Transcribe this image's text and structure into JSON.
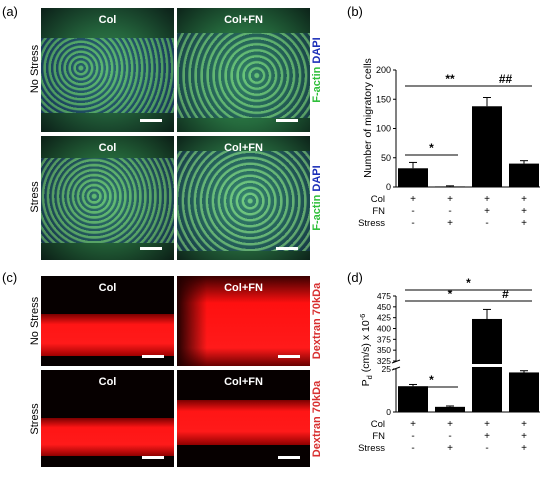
{
  "panels": {
    "a": {
      "label": "(a)",
      "rows": [
        "No Stress",
        "Stress"
      ],
      "cols": [
        "Col",
        "Col+FN"
      ],
      "stain_green": "F-actin",
      "stain_blue": "DAPI"
    },
    "b": {
      "label": "(b)"
    },
    "c": {
      "label": "(c)",
      "rows": [
        "No Stress",
        "Stress"
      ],
      "cols": [
        "Col",
        "Col+FN"
      ],
      "stain": "Dextran 70kDa"
    },
    "d": {
      "label": "(d)"
    }
  },
  "colors": {
    "green": "#2fbf3a",
    "blue": "#1c2fb8",
    "red": "#ff1010",
    "dextran_text": "#d83030"
  },
  "conditions": {
    "row_labels": [
      "Col",
      "FN",
      "Stress"
    ],
    "signs": [
      [
        "+",
        "+",
        "+",
        "+"
      ],
      [
        "-",
        "-",
        "+",
        "+"
      ],
      [
        "-",
        "+",
        "-",
        "+"
      ]
    ]
  },
  "chart_data": [
    {
      "type": "bar",
      "panel": "(b)",
      "ylabel": "Number of migratory cells",
      "ylim": [
        0,
        200
      ],
      "yticks": [
        0,
        50,
        100,
        150,
        200
      ],
      "values": [
        32,
        1,
        138,
        40
      ],
      "errors": [
        10,
        1,
        15,
        5
      ],
      "significance": [
        {
          "from": 0,
          "to": 1,
          "label": "*",
          "level": 0
        },
        {
          "from": 0,
          "to": 2,
          "label": "**",
          "level": 1
        },
        {
          "from": 2,
          "to": 3,
          "label": "##",
          "level": 1
        }
      ]
    },
    {
      "type": "bar",
      "panel": "(d)",
      "ylabel_main": "P",
      "ylabel_sub": "d",
      "ylabel_rest": " (cm/s) x 10",
      "ylabel_sup": "-6",
      "axis_break": true,
      "ylim_low": [
        0,
        25
      ],
      "yticks_low": [
        0,
        25
      ],
      "ylim_high": [
        325,
        475
      ],
      "yticks_high": [
        325,
        350,
        375,
        400,
        425,
        450,
        475
      ],
      "values": [
        15,
        3,
        422,
        23
      ],
      "errors": [
        1,
        0.5,
        22,
        1
      ],
      "significance": [
        {
          "from": 0,
          "to": 1,
          "label": "*",
          "level": 0
        },
        {
          "from": 0,
          "to": 2,
          "label": "*",
          "level": 1
        },
        {
          "from": 2,
          "to": 3,
          "label": "#",
          "level": 1
        },
        {
          "from": 0,
          "to": 3,
          "label": "*",
          "level": 2
        }
      ]
    }
  ]
}
